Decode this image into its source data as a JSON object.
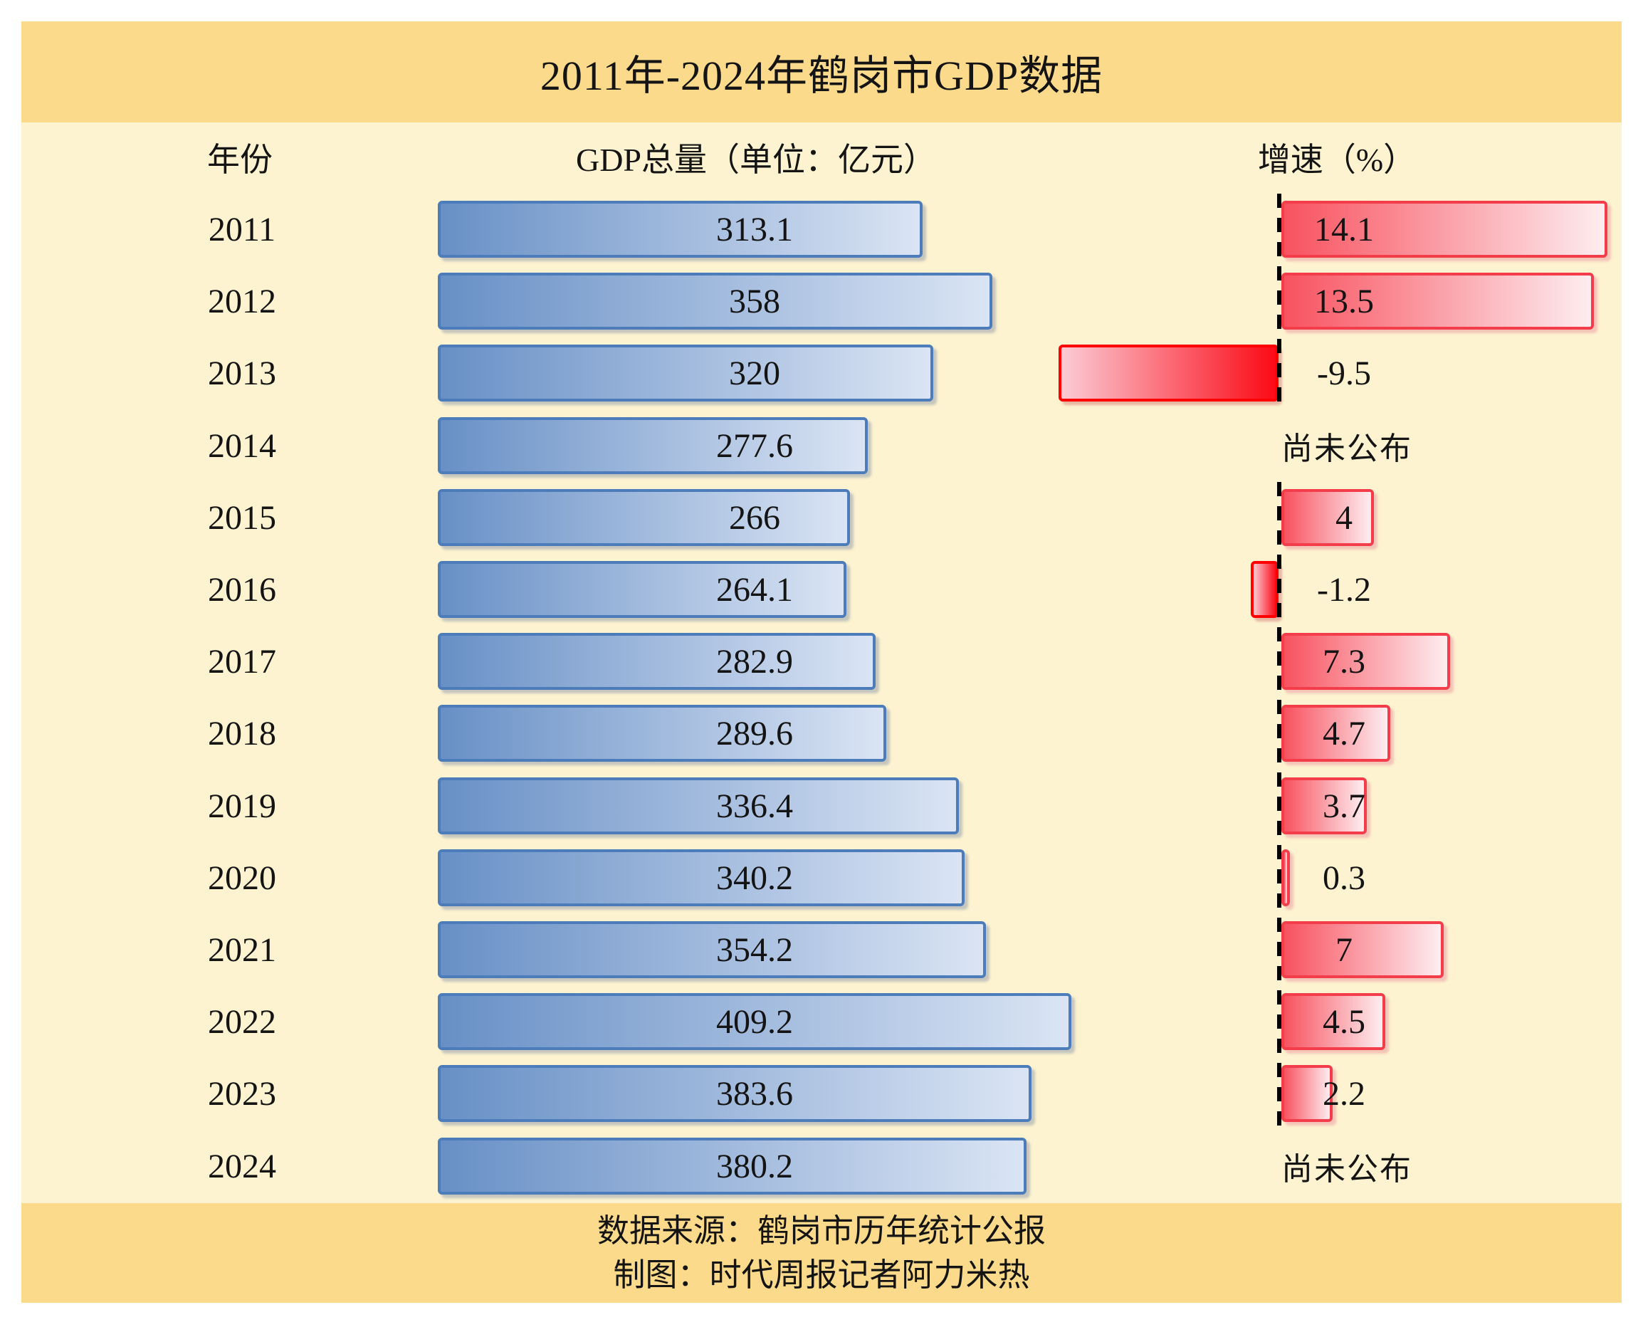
{
  "title": "2011年-2024年鹤岗市GDP数据",
  "columns": {
    "year": "年份",
    "gdp": "GDP总量（单位：亿元）",
    "growth": "增速（%）"
  },
  "not_published_label": "尚未公布",
  "footer": {
    "source": "数据来源：鹤岗市历年统计公报",
    "credit": "制图：时代周报记者阿力米热"
  },
  "colors": {
    "band": "#fbdb8b",
    "bodybg": "#fdf3d0",
    "ink": "#141414",
    "blue1": "#6890c6",
    "blue2": "#dae4f4",
    "blueborder": "#4d7cba",
    "red1": "#f8525f",
    "red2": "#fdedf0",
    "redborder": "#f43d4b",
    "neg1": "#fbccd5",
    "neg2": "#fb0a16",
    "negborder": "#ff0000"
  },
  "chart_data": {
    "type": "bar",
    "orientation": "horizontal",
    "title": "2011年-2024年鹤岗市GDP数据",
    "categories": [
      "2011",
      "2012",
      "2013",
      "2014",
      "2015",
      "2016",
      "2017",
      "2018",
      "2019",
      "2020",
      "2021",
      "2022",
      "2023",
      "2024"
    ],
    "series": [
      {
        "name": "GDP总量（单位：亿元）",
        "values": [
          313.1,
          358,
          320,
          277.6,
          266,
          264.1,
          282.9,
          289.6,
          336.4,
          340.2,
          354.2,
          409.2,
          383.6,
          380.2
        ],
        "axis_max": 409.2
      },
      {
        "name": "增速（%）",
        "values": [
          14.1,
          13.5,
          -9.5,
          null,
          4,
          -1.2,
          7.3,
          4.7,
          3.7,
          0.3,
          7,
          4.5,
          2.2,
          null
        ],
        "null_label": "尚未公布",
        "zero_axis": "dashed-vertical-line"
      }
    ],
    "legend": "none",
    "grid": "off",
    "value_labels": "shown"
  }
}
